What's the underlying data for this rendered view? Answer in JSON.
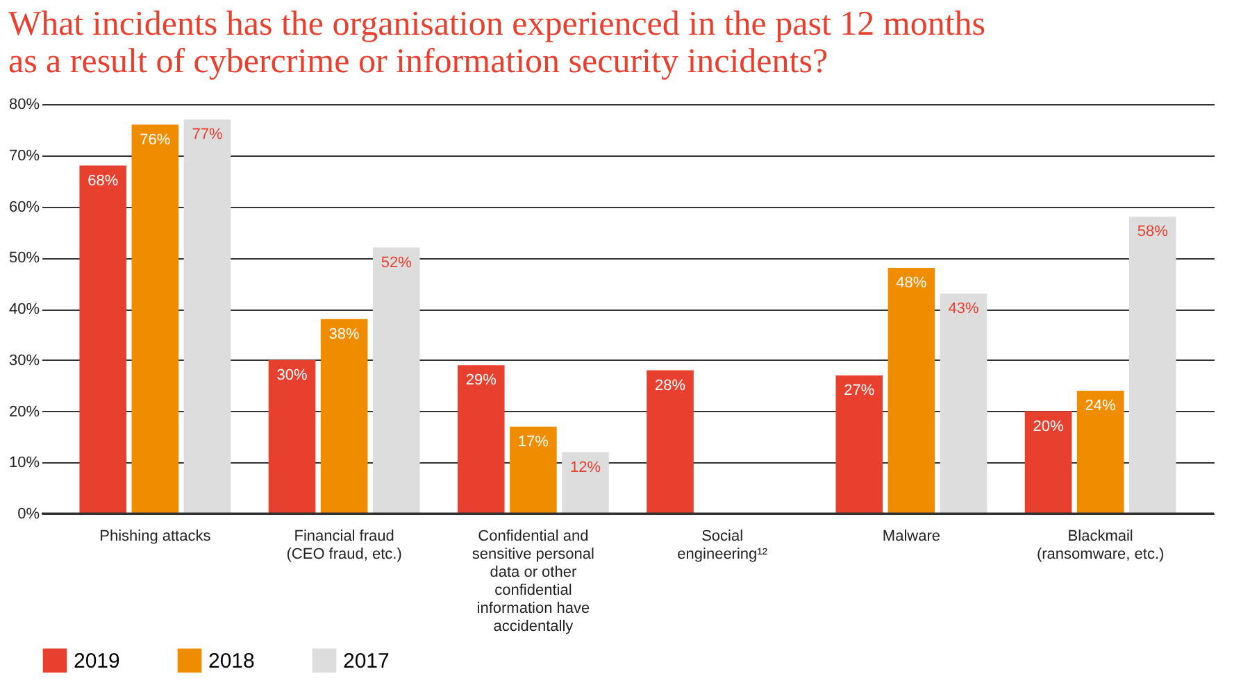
{
  "chart_data": {
    "type": "bar",
    "title": "What incidents has the organisation experienced in the past 12 months as a result of cybercrime or information security incidents?",
    "categories": [
      "Phishing attacks",
      "Financial fraud (CEO fraud, etc.)",
      "Confidential and sensitive personal data or other confidential information have accidentally",
      "Social engineering¹²",
      "Malware",
      "Blackmail (ransomware, etc.)"
    ],
    "series": [
      {
        "name": "2019",
        "color": "#e8402f",
        "values": [
          68,
          30,
          29,
          28,
          27,
          20
        ],
        "value_labels": [
          "68%",
          "30%",
          "29%",
          "28%",
          "27%",
          "20%"
        ]
      },
      {
        "name": "2018",
        "color": "#f08c00",
        "values": [
          76,
          38,
          17,
          null,
          48,
          24
        ],
        "value_labels": [
          "76%",
          "38%",
          "17%",
          null,
          "48%",
          "24%"
        ]
      },
      {
        "name": "2017",
        "color": "#dddddd",
        "values": [
          77,
          52,
          12,
          null,
          43,
          58
        ],
        "value_labels": [
          "77%",
          "52%",
          "12%",
          null,
          "43%",
          "58%"
        ]
      }
    ],
    "ylim": [
      0,
      80
    ],
    "yticks": [
      {
        "value": 0,
        "label": "0%"
      },
      {
        "value": 10,
        "label": "10%"
      },
      {
        "value": 20,
        "label": "20%"
      },
      {
        "value": 30,
        "label": "30%"
      },
      {
        "value": 40,
        "label": "40%"
      },
      {
        "value": 50,
        "label": "50%"
      },
      {
        "value": 60,
        "label": "60%"
      },
      {
        "value": 70,
        "label": "70%"
      },
      {
        "value": 80,
        "label": "80%"
      }
    ],
    "grid": "y",
    "legend": "bottom left"
  }
}
